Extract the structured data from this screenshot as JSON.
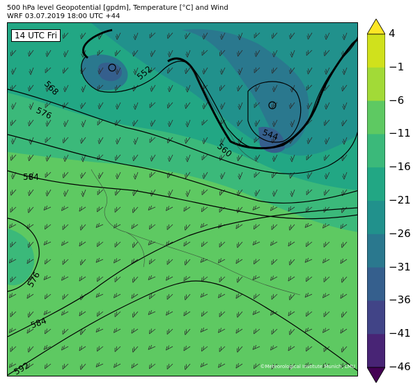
{
  "header": {
    "title_line1": "500 hPa level Geopotential [gpdm], Temperature [°C] and Wind",
    "title_line2": "WRF 03.07.2019 18:00 UTC +44"
  },
  "map": {
    "time_label": "14 UTC Fri",
    "copyright": "©Meteorological Institute Munich, LMU",
    "contour_labels": [
      "568",
      "552",
      "576",
      "560",
      "544",
      "584",
      "576",
      "584",
      "592"
    ],
    "low_markers": [
      "low-pressure-center-north-atlantic",
      "low-pressure-center-scandinavia"
    ]
  },
  "colorbar": {
    "tick_labels": [
      "4",
      "−1",
      "−6",
      "−11",
      "−16",
      "−21",
      "−26",
      "−31",
      "−36",
      "−41",
      "−46"
    ],
    "colors": [
      "#fde725",
      "#d0e11c",
      "#a2da37",
      "#5ec962",
      "#3bb97a",
      "#22a784",
      "#21918c",
      "#2a788e",
      "#355f8d",
      "#414487",
      "#482475",
      "#440154"
    ]
  },
  "colors": {
    "background_dominant": "#5ec962",
    "cold_air": "#2a788e",
    "contour": "#000000"
  }
}
